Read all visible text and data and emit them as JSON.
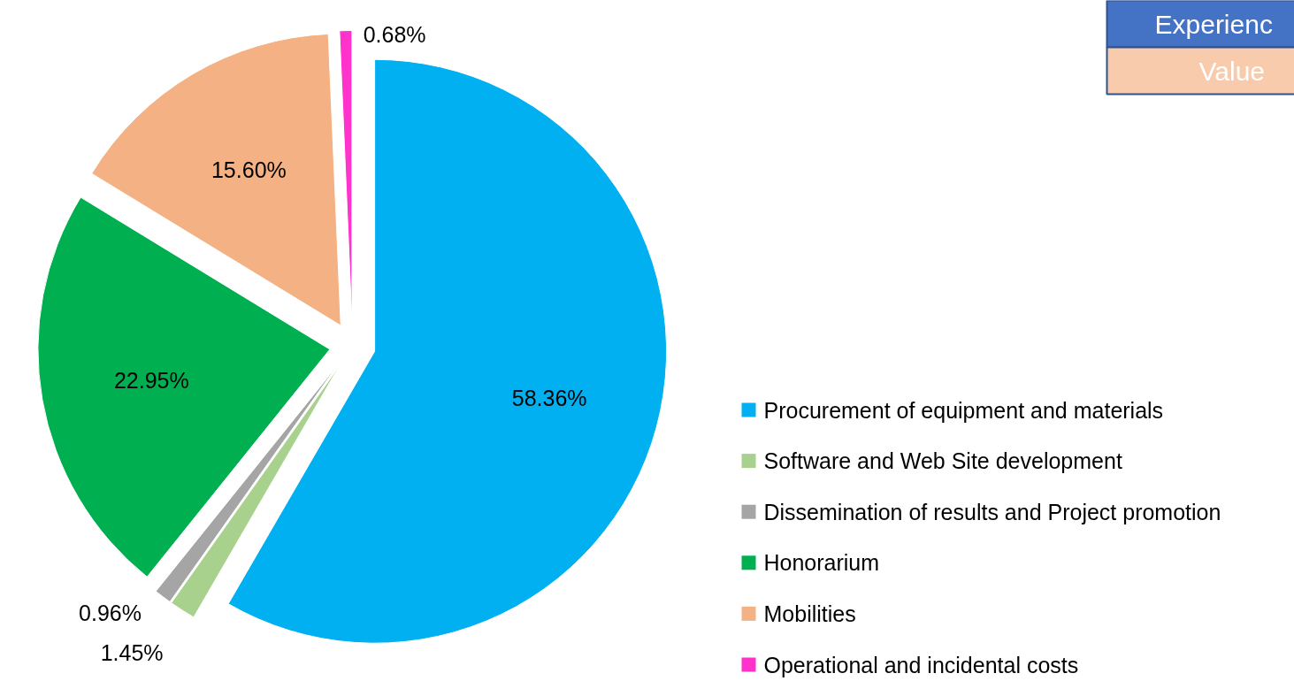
{
  "chart_data": {
    "type": "pie",
    "categories": [
      "Procurement of equipment and materials",
      "Software and Web Site development",
      "Dissemination of results and Project promotion",
      "Honorarium",
      "Mobilities",
      "Operational and incidental costs"
    ],
    "values": [
      58.36,
      1.45,
      0.96,
      22.95,
      15.6,
      0.68
    ],
    "value_labels": [
      "58.36%",
      "1.45%",
      "0.96%",
      "22.95%",
      "15.60%",
      "0.68%"
    ],
    "colors": [
      "#00b0f0",
      "#a9d18e",
      "#a5a5a5",
      "#00b050",
      "#f4b183",
      "#ff33cc"
    ],
    "legend": "right",
    "annotations": [
      "Experienc",
      "Value"
    ]
  }
}
